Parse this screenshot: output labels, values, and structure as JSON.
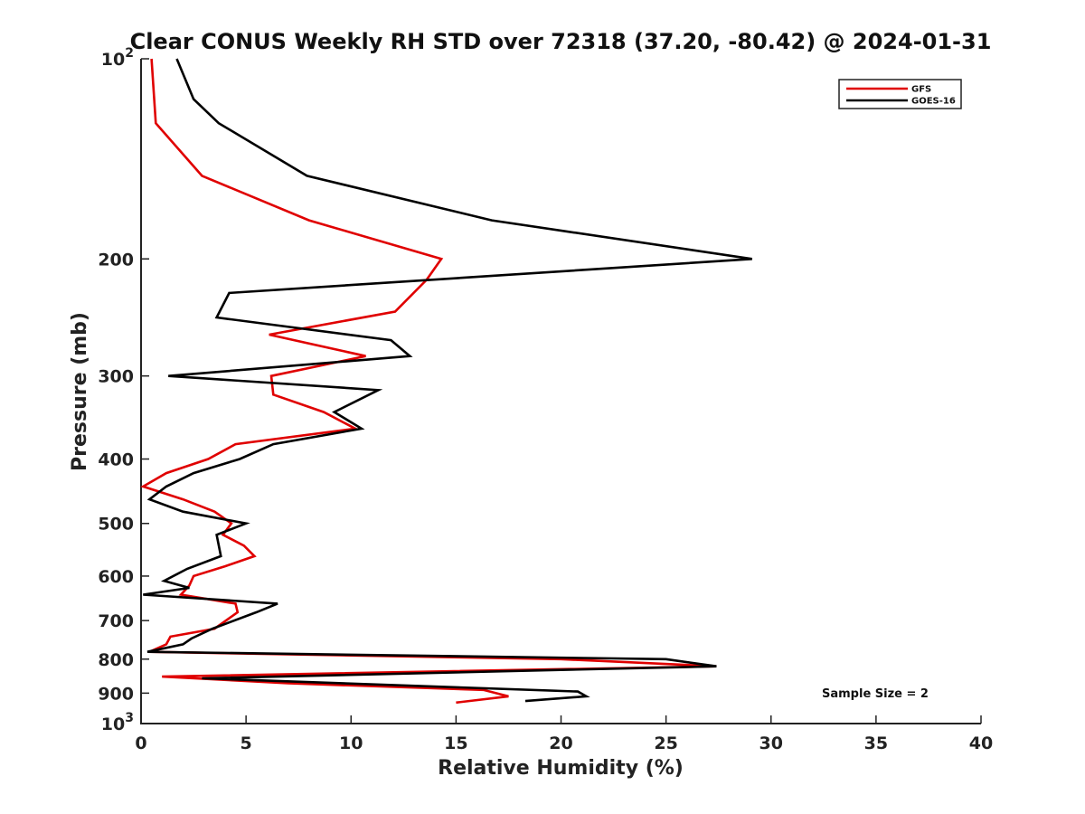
{
  "chart_data": {
    "type": "line",
    "title": "Clear CONUS Weekly RH STD over 72318 (37.20, -80.42) @ 2024-01-31",
    "xlabel": "Relative Humidity (%)",
    "ylabel": "Pressure (mb)",
    "xlim": [
      0,
      40
    ],
    "ylim": [
      1000,
      100
    ],
    "y_scale": "log",
    "y_reversed": true,
    "x_ticks": [
      "0",
      "5",
      "10",
      "15",
      "20",
      "25",
      "30",
      "35",
      "40"
    ],
    "y_ticks": [
      {
        "value": 100,
        "base": "10",
        "exp": "2"
      },
      {
        "value": 200,
        "label": "200"
      },
      {
        "value": 300,
        "label": "300"
      },
      {
        "value": 400,
        "label": "400"
      },
      {
        "value": 500,
        "label": "500"
      },
      {
        "value": 600,
        "label": "600"
      },
      {
        "value": 700,
        "label": "700"
      },
      {
        "value": 800,
        "label": "800"
      },
      {
        "value": 900,
        "label": "900"
      },
      {
        "value": 1000,
        "base": "10",
        "exp": "3"
      }
    ],
    "grid": false,
    "legend_position": "top-right",
    "annotation": "Sample Size = 2",
    "series": [
      {
        "name": "GFS",
        "color": "#e00000",
        "points": [
          [
            0.5,
            100
          ],
          [
            0.7,
            125
          ],
          [
            2.9,
            150
          ],
          [
            8.0,
            175
          ],
          [
            14.3,
            200
          ],
          [
            13.6,
            215
          ],
          [
            12.1,
            240
          ],
          [
            6.1,
            260
          ],
          [
            10.7,
            280
          ],
          [
            6.2,
            300
          ],
          [
            6.3,
            320
          ],
          [
            8.7,
            340
          ],
          [
            10.2,
            360
          ],
          [
            4.5,
            380
          ],
          [
            3.2,
            400
          ],
          [
            1.2,
            420
          ],
          [
            0.1,
            440
          ],
          [
            2.0,
            460
          ],
          [
            3.5,
            480
          ],
          [
            4.3,
            500
          ],
          [
            3.9,
            520
          ],
          [
            4.9,
            540
          ],
          [
            5.4,
            560
          ],
          [
            4.0,
            580
          ],
          [
            2.5,
            600
          ],
          [
            2.3,
            620
          ],
          [
            1.9,
            640
          ],
          [
            4.5,
            660
          ],
          [
            4.6,
            680
          ],
          [
            3.5,
            720
          ],
          [
            1.4,
            740
          ],
          [
            1.2,
            760
          ],
          [
            0.4,
            780
          ],
          [
            20.0,
            800
          ],
          [
            27.4,
            820
          ],
          [
            1.0,
            850
          ],
          [
            7.0,
            870
          ],
          [
            16.3,
            890
          ],
          [
            17.5,
            910
          ],
          [
            15.0,
            930
          ]
        ]
      },
      {
        "name": "GOES-16",
        "color": "#000000",
        "points": [
          [
            1.7,
            100
          ],
          [
            2.5,
            115
          ],
          [
            3.7,
            125
          ],
          [
            7.9,
            150
          ],
          [
            16.7,
            175
          ],
          [
            29.1,
            200
          ],
          [
            4.2,
            225
          ],
          [
            3.6,
            245
          ],
          [
            11.9,
            265
          ],
          [
            12.8,
            280
          ],
          [
            1.3,
            300
          ],
          [
            11.3,
            315
          ],
          [
            9.2,
            340
          ],
          [
            10.5,
            360
          ],
          [
            6.3,
            380
          ],
          [
            4.7,
            400
          ],
          [
            2.5,
            420
          ],
          [
            1.2,
            440
          ],
          [
            0.4,
            460
          ],
          [
            2.0,
            480
          ],
          [
            5.0,
            500
          ],
          [
            3.6,
            520
          ],
          [
            3.8,
            560
          ],
          [
            2.2,
            585
          ],
          [
            1.1,
            610
          ],
          [
            2.3,
            625
          ],
          [
            0.1,
            640
          ],
          [
            6.5,
            660
          ],
          [
            5.5,
            680
          ],
          [
            3.4,
            720
          ],
          [
            2.4,
            745
          ],
          [
            2.0,
            760
          ],
          [
            0.3,
            780
          ],
          [
            25.0,
            800
          ],
          [
            27.4,
            820
          ],
          [
            2.9,
            855
          ],
          [
            20.8,
            895
          ],
          [
            21.2,
            910
          ],
          [
            18.3,
            925
          ]
        ]
      }
    ]
  }
}
